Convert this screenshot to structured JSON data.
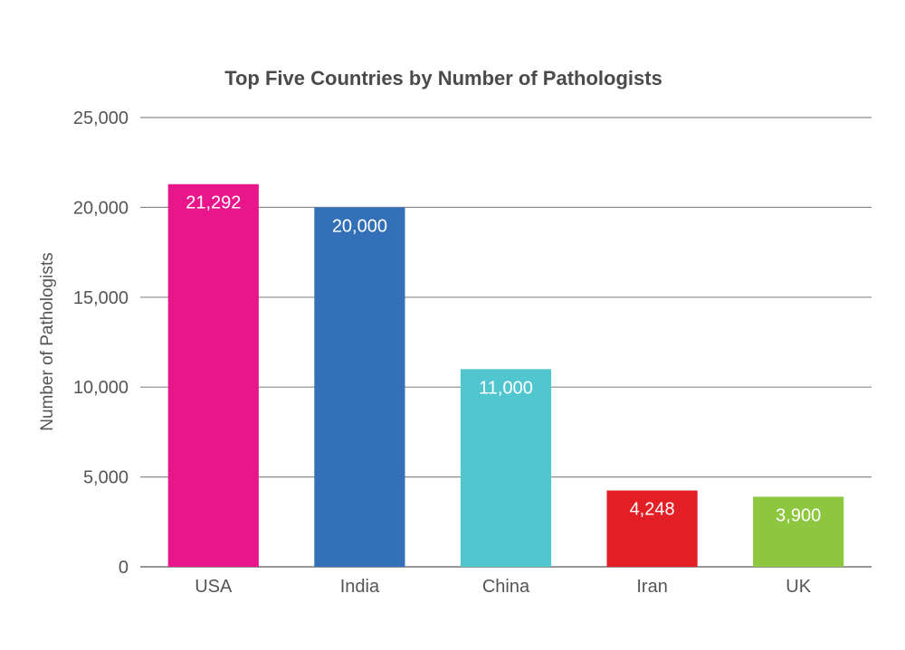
{
  "chart_data": {
    "type": "bar",
    "title": "Top Five Countries by Number of Pathologists",
    "xlabel": "",
    "ylabel": "Number of Pathologists",
    "categories": [
      "USA",
      "India",
      "China",
      "Iran",
      "UK"
    ],
    "values": [
      21292,
      20000,
      11000,
      4248,
      3900
    ],
    "data_labels": [
      "21,292",
      "20,000",
      "11,000",
      "4,248",
      "3,900"
    ],
    "colors": [
      "#e8158b",
      "#3470b8",
      "#52c6cf",
      "#e31f26",
      "#8dc63f"
    ],
    "ylim": [
      0,
      25000
    ],
    "yticks": [
      0,
      5000,
      10000,
      15000,
      20000,
      25000
    ],
    "ytick_labels": [
      "0",
      "5,000",
      "10,000",
      "15,000",
      "20,000",
      "25,000"
    ],
    "grid": true,
    "legend": "none"
  }
}
